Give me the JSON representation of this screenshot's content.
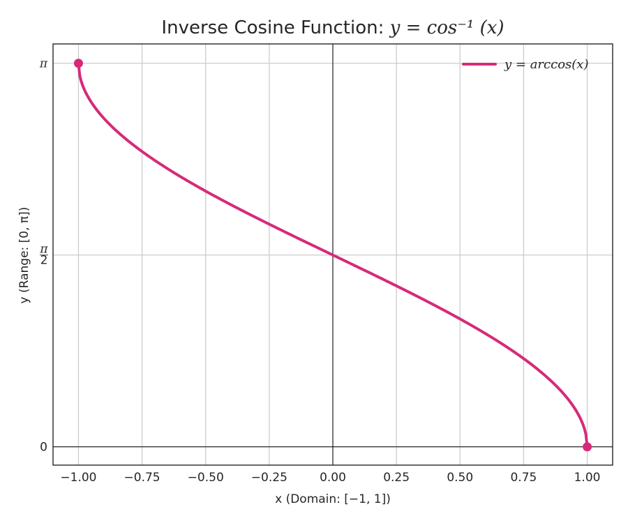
{
  "chart_data": {
    "type": "line",
    "title": {
      "prefix": "Inverse Cosine Function: ",
      "math": "y = cos⁻¹ (x)"
    },
    "xlabel": "x (Domain: [−1, 1])",
    "ylabel": "y (Range: [0, π])",
    "xlim": [
      -1.1,
      1.1
    ],
    "ylim": [
      -0.15,
      3.3
    ],
    "x_ticks": [
      -1.0,
      -0.75,
      -0.5,
      -0.25,
      0.0,
      0.25,
      0.5,
      0.75,
      1.0
    ],
    "x_tick_labels": [
      "−1.00",
      "−0.75",
      "−0.50",
      "−0.25",
      "0.00",
      "0.25",
      "0.50",
      "0.75",
      "1.00"
    ],
    "y_ticks": [
      0,
      1.5708,
      3.1416
    ],
    "y_tick_labels": [
      "0",
      "π/2",
      "π"
    ],
    "grid": true,
    "legend_position": "top-right",
    "series": [
      {
        "name": "y = arccos(x)",
        "color": "#d62a79",
        "function": "arccos",
        "x_range": [
          -1,
          1
        ]
      }
    ],
    "endpoints": [
      {
        "x": -1,
        "y": 3.1416
      },
      {
        "x": 1,
        "y": 0
      }
    ]
  }
}
